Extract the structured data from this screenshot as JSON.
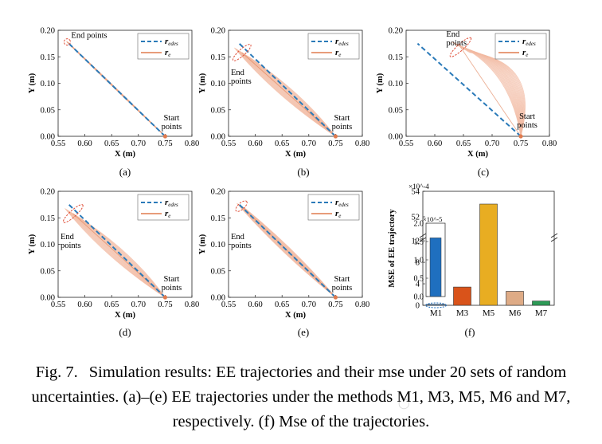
{
  "chart_data": [
    {
      "type": "line",
      "panel_label": "(a)",
      "xlabel": "X (m)",
      "ylabel": "Y (m)",
      "xlim": [
        0.55,
        0.8
      ],
      "ylim": [
        0,
        0.2
      ],
      "xticks": [
        "0.55",
        "0.60",
        "0.65",
        "0.70",
        "0.75",
        "0.80"
      ],
      "yticks": [
        "0.00",
        "0.05",
        "0.10",
        "0.15",
        "0.20"
      ],
      "legend": [
        "r_edes",
        "r_e"
      ],
      "legend_position": "top-right",
      "annotations": {
        "end": "End points",
        "start": "Start points"
      },
      "series": [
        {
          "name": "r_edes",
          "x": [
            0.75,
            0.57
          ],
          "y": [
            0.0,
            0.175
          ],
          "style": "dashed"
        },
        {
          "name": "r_e",
          "start": [
            0.75,
            0.0
          ],
          "end": [
            0.567,
            0.178
          ],
          "spread": 0.002
        }
      ]
    },
    {
      "type": "line",
      "panel_label": "(b)",
      "xlabel": "X (m)",
      "ylabel": "Y (m)",
      "xlim": [
        0.55,
        0.8
      ],
      "ylim": [
        0,
        0.2
      ],
      "xticks": [
        "0.55",
        "0.60",
        "0.65",
        "0.70",
        "0.75",
        "0.80"
      ],
      "yticks": [
        "0.00",
        "0.05",
        "0.10",
        "0.15",
        "0.20"
      ],
      "legend": [
        "r_edes",
        "r_e"
      ],
      "legend_position": "top-right",
      "annotations": {
        "end": "End points",
        "start": "Start points"
      },
      "series": [
        {
          "name": "r_edes",
          "x": [
            0.75,
            0.57
          ],
          "y": [
            0.0,
            0.175
          ],
          "style": "dashed"
        },
        {
          "name": "r_e",
          "start": [
            0.75,
            0.0
          ],
          "end": [
            0.575,
            0.158
          ],
          "spread": 0.02
        }
      ]
    },
    {
      "type": "line",
      "panel_label": "(c)",
      "xlabel": "X (m)",
      "ylabel": "Y (m)",
      "xlim": [
        0.55,
        0.8
      ],
      "ylim": [
        0,
        0.2
      ],
      "xticks": [
        "0.55",
        "0.60",
        "0.65",
        "0.70",
        "0.75",
        "0.80"
      ],
      "yticks": [
        "0.00",
        "0.05",
        "0.10",
        "0.15",
        "0.20"
      ],
      "legend": [
        "r_edes",
        "r_e"
      ],
      "legend_position": "top-right",
      "annotations": {
        "end": "End points",
        "start": "Start points"
      },
      "series": [
        {
          "name": "r_edes",
          "x": [
            0.75,
            0.57
          ],
          "y": [
            0.0,
            0.175
          ],
          "style": "dashed"
        },
        {
          "name": "r_e",
          "start": [
            0.75,
            0.0
          ],
          "end": [
            0.645,
            0.168
          ],
          "spread": 0.022,
          "bow": 0.06
        }
      ]
    },
    {
      "type": "line",
      "panel_label": "(d)",
      "xlabel": "X (m)",
      "ylabel": "Y (m)",
      "xlim": [
        0.55,
        0.8
      ],
      "ylim": [
        0,
        0.2
      ],
      "xticks": [
        "0.55",
        "0.60",
        "0.65",
        "0.70",
        "0.75",
        "0.80"
      ],
      "yticks": [
        "0.00",
        "0.05",
        "0.10",
        "0.15",
        "0.20"
      ],
      "legend": [
        "r_edes",
        "r_e"
      ],
      "legend_position": "top-right",
      "annotations": {
        "end": "End points",
        "start": "Start points"
      },
      "series": [
        {
          "name": "r_edes",
          "x": [
            0.75,
            0.57
          ],
          "y": [
            0.0,
            0.175
          ],
          "style": "dashed"
        },
        {
          "name": "r_e",
          "start": [
            0.75,
            0.0
          ],
          "end": [
            0.578,
            0.158
          ],
          "spread": 0.022
        }
      ]
    },
    {
      "type": "line",
      "panel_label": "(e)",
      "xlabel": "X (m)",
      "ylabel": "Y (m)",
      "xlim": [
        0.55,
        0.8
      ],
      "ylim": [
        0,
        0.2
      ],
      "xticks": [
        "0.55",
        "0.60",
        "0.65",
        "0.70",
        "0.75",
        "0.80"
      ],
      "yticks": [
        "0.00",
        "0.05",
        "0.10",
        "0.15",
        "0.20"
      ],
      "legend": [
        "r_edes",
        "r_e"
      ],
      "legend_position": "top-right",
      "annotations": {
        "end": "End points",
        "start": "Start points"
      },
      "series": [
        {
          "name": "r_edes",
          "x": [
            0.75,
            0.57
          ],
          "y": [
            0.0,
            0.175
          ],
          "style": "dashed"
        },
        {
          "name": "r_e",
          "start": [
            0.75,
            0.0
          ],
          "end": [
            0.574,
            0.172
          ],
          "spread": 0.012
        }
      ]
    },
    {
      "type": "bar",
      "panel_label": "(f)",
      "ylabel": "MSE of EE trajectory",
      "categories": [
        "M1",
        "M3",
        "M5",
        "M6",
        "M7"
      ],
      "values": [
        1.6e-05,
        0.00034,
        0.0053,
        0.00026,
        8e-05
      ],
      "colors": [
        "#1f6fbf",
        "#d9531a",
        "#e8ad22",
        "#deab86",
        "#2c9a56"
      ],
      "y_multiplier": "×10^-4",
      "yticks": [
        "0",
        "4",
        "8",
        "12",
        "52",
        "54"
      ],
      "axis_break": true,
      "inset": {
        "multiplier": "×10^-5",
        "yticks": [
          "0.0",
          "0.5",
          "1.0",
          "1.5",
          "2.0"
        ],
        "ylim": [
          0,
          2.0
        ]
      }
    }
  ],
  "caption": {
    "label": "Fig. 7.",
    "text": "Simulation results: EE trajectories and their mse under 20 sets of random uncertainties. (a)–(e) EE trajectories under the methods M1, M3, M5, M6 and M7, respectively. (f) Mse of the trajectories."
  },
  "colors": {
    "desired": "#2a7ab9",
    "actual": "#e07b4f",
    "actual_faint": "#f1b9a1",
    "ellipse": "#e0503a"
  }
}
